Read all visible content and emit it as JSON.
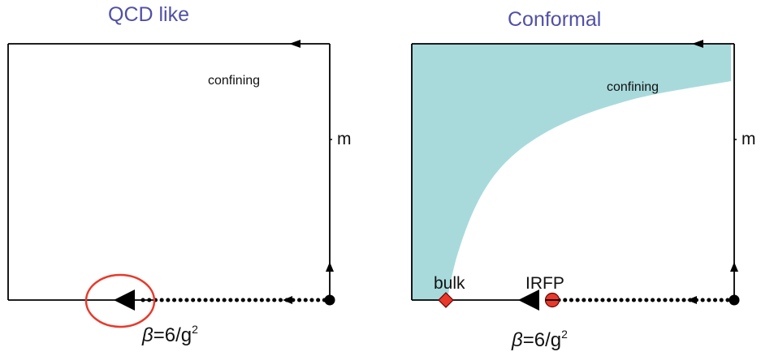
{
  "colors": {
    "title": "#5050a8",
    "region_fill": "#a8dadc",
    "line": "#000000",
    "highlight": "#e8392a",
    "marker_fill": "#e8392a"
  },
  "left_panel": {
    "title": "QCD like",
    "region_label": "confining",
    "axis_y_label": "m",
    "beta_symbol": "β",
    "beta_text": "=6/g",
    "beta_exp": "2"
  },
  "right_panel": {
    "title": "Conformal",
    "region_label": "confining",
    "axis_y_label": "m",
    "bulk_label": "bulk",
    "irfp_label": "IRFP",
    "beta_symbol": "β",
    "beta_text": "=6/g",
    "beta_exp": "2"
  }
}
